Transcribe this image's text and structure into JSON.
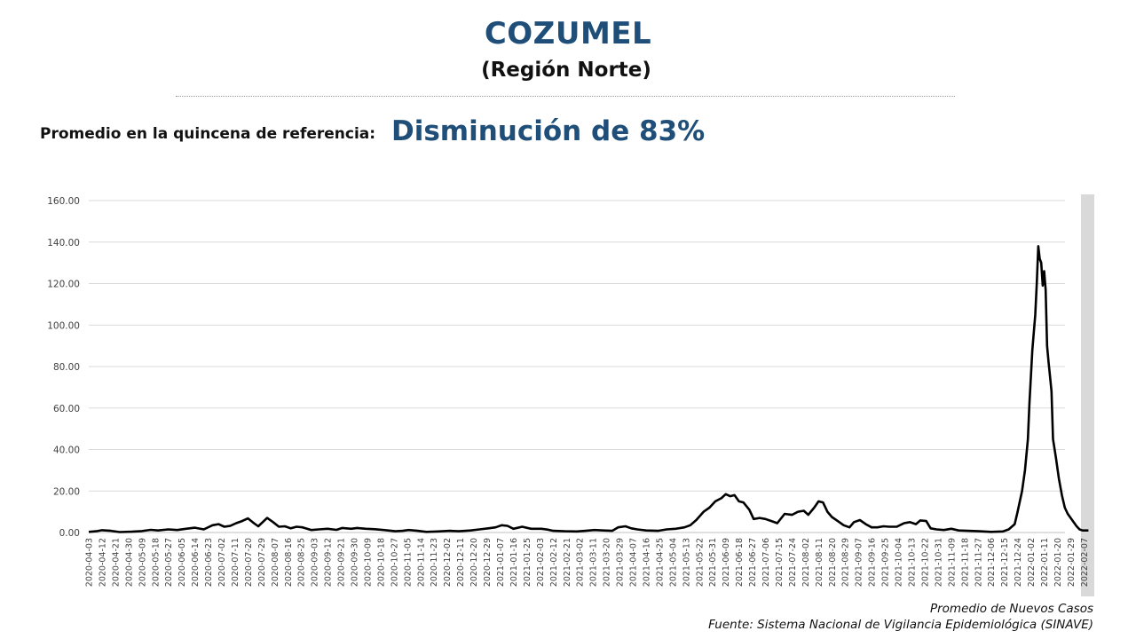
{
  "header": {
    "title": "COZUMEL",
    "subtitle": "(Región Norte)"
  },
  "reference": {
    "label": "Promedio en la quincena de referencia:",
    "value": "Disminución de 83%"
  },
  "footer": {
    "line1": "Promedio de Nuevos Casos",
    "line2": "Fuente: Sistema Nacional de Vigilancia Epidemiológica (SINAVE)"
  },
  "colors": {
    "title": "#1f4e79",
    "line": "#000000",
    "grid": "#d9d9d9",
    "shade": "#d9d9d9"
  },
  "chart_data": {
    "type": "line",
    "title": "",
    "xlabel": "",
    "ylabel": "",
    "ylim": [
      0,
      160
    ],
    "yticks": [
      "0.00",
      "20.00",
      "40.00",
      "60.00",
      "80.00",
      "100.00",
      "120.00",
      "140.00",
      "160.00"
    ],
    "grid": true,
    "shaded_region": {
      "from": "2022-02-05",
      "to": "2022-02-14"
    },
    "x_tick_labels": [
      "2020-04-03",
      "2020-04-12",
      "2020-04-21",
      "2020-04-30",
      "2020-05-09",
      "2020-05-18",
      "2020-05-27",
      "2020-06-05",
      "2020-06-14",
      "2020-06-23",
      "2020-07-02",
      "2020-07-11",
      "2020-07-20",
      "2020-07-29",
      "2020-08-07",
      "2020-08-16",
      "2020-08-25",
      "2020-09-03",
      "2020-09-12",
      "2020-09-21",
      "2020-09-30",
      "2020-10-09",
      "2020-10-18",
      "2020-10-27",
      "2020-11-05",
      "2020-11-14",
      "2020-11-23",
      "2020-12-02",
      "2020-12-11",
      "2020-12-20",
      "2020-12-29",
      "2021-01-07",
      "2021-01-16",
      "2021-01-25",
      "2021-02-03",
      "2021-02-12",
      "2021-02-21",
      "2021-03-02",
      "2021-03-11",
      "2021-03-20",
      "2021-03-29",
      "2021-04-07",
      "2021-04-16",
      "2021-04-25",
      "2021-05-04",
      "2021-05-13",
      "2021-05-22",
      "2021-05-31",
      "2021-06-09",
      "2021-06-18",
      "2021-06-27",
      "2021-07-06",
      "2021-07-15",
      "2021-07-24",
      "2021-08-02",
      "2021-08-11",
      "2021-08-20",
      "2021-08-29",
      "2021-09-07",
      "2021-09-16",
      "2021-09-25",
      "2021-10-04",
      "2021-10-13",
      "2021-10-22",
      "2021-10-31",
      "2021-11-09",
      "2021-11-18",
      "2021-11-27",
      "2021-12-06",
      "2021-12-15",
      "2021-12-24",
      "2022-01-02",
      "2022-01-11",
      "2022-01-20",
      "2022-01-29",
      "2022-02-07"
    ],
    "series": [
      {
        "name": "",
        "points": [
          [
            "2020-04-03",
            0.3
          ],
          [
            "2020-04-08",
            0.6
          ],
          [
            "2020-04-12",
            1.1
          ],
          [
            "2020-04-18",
            0.8
          ],
          [
            "2020-04-24",
            0.2
          ],
          [
            "2020-05-02",
            0.4
          ],
          [
            "2020-05-09",
            0.7
          ],
          [
            "2020-05-15",
            1.3
          ],
          [
            "2020-05-20",
            1.0
          ],
          [
            "2020-05-27",
            1.5
          ],
          [
            "2020-06-02",
            1.2
          ],
          [
            "2020-06-08",
            1.8
          ],
          [
            "2020-06-14",
            2.3
          ],
          [
            "2020-06-20",
            1.5
          ],
          [
            "2020-06-26",
            3.5
          ],
          [
            "2020-06-30",
            4.0
          ],
          [
            "2020-07-04",
            2.8
          ],
          [
            "2020-07-08",
            3.2
          ],
          [
            "2020-07-12",
            4.5
          ],
          [
            "2020-07-16",
            5.5
          ],
          [
            "2020-07-20",
            6.8
          ],
          [
            "2020-07-24",
            4.5
          ],
          [
            "2020-07-27",
            3.0
          ],
          [
            "2020-07-30",
            5.0
          ],
          [
            "2020-08-02",
            7.0
          ],
          [
            "2020-08-06",
            5.0
          ],
          [
            "2020-08-10",
            2.8
          ],
          [
            "2020-08-14",
            3.0
          ],
          [
            "2020-08-18",
            2.0
          ],
          [
            "2020-08-22",
            2.8
          ],
          [
            "2020-08-26",
            2.5
          ],
          [
            "2020-09-01",
            1.2
          ],
          [
            "2020-09-06",
            1.5
          ],
          [
            "2020-09-12",
            1.8
          ],
          [
            "2020-09-18",
            1.3
          ],
          [
            "2020-09-22",
            2.2
          ],
          [
            "2020-09-28",
            1.8
          ],
          [
            "2020-10-02",
            2.2
          ],
          [
            "2020-10-08",
            1.8
          ],
          [
            "2020-10-14",
            1.6
          ],
          [
            "2020-10-20",
            1.2
          ],
          [
            "2020-10-28",
            0.6
          ],
          [
            "2020-11-02",
            0.8
          ],
          [
            "2020-11-06",
            1.2
          ],
          [
            "2020-11-12",
            0.8
          ],
          [
            "2020-11-18",
            0.3
          ],
          [
            "2020-11-26",
            0.5
          ],
          [
            "2020-12-04",
            0.8
          ],
          [
            "2020-12-10",
            0.6
          ],
          [
            "2020-12-18",
            1.0
          ],
          [
            "2020-12-24",
            1.5
          ],
          [
            "2020-12-30",
            2.0
          ],
          [
            "2021-01-04",
            2.5
          ],
          [
            "2021-01-08",
            3.5
          ],
          [
            "2021-01-12",
            3.2
          ],
          [
            "2021-01-16",
            1.8
          ],
          [
            "2021-01-22",
            2.8
          ],
          [
            "2021-01-28",
            1.8
          ],
          [
            "2021-02-04",
            1.8
          ],
          [
            "2021-02-08",
            1.4
          ],
          [
            "2021-02-12",
            0.8
          ],
          [
            "2021-02-20",
            0.6
          ],
          [
            "2021-02-28",
            0.5
          ],
          [
            "2021-03-06",
            0.8
          ],
          [
            "2021-03-12",
            1.2
          ],
          [
            "2021-03-18",
            1.0
          ],
          [
            "2021-03-24",
            0.8
          ],
          [
            "2021-03-28",
            2.5
          ],
          [
            "2021-04-02",
            3.0
          ],
          [
            "2021-04-06",
            2.0
          ],
          [
            "2021-04-10",
            1.5
          ],
          [
            "2021-04-16",
            1.0
          ],
          [
            "2021-04-24",
            0.8
          ],
          [
            "2021-04-30",
            1.5
          ],
          [
            "2021-05-06",
            1.8
          ],
          [
            "2021-05-12",
            2.5
          ],
          [
            "2021-05-16",
            3.5
          ],
          [
            "2021-05-20",
            6.0
          ],
          [
            "2021-05-25",
            10.0
          ],
          [
            "2021-05-29",
            12.0
          ],
          [
            "2021-06-02",
            15.0
          ],
          [
            "2021-06-06",
            16.5
          ],
          [
            "2021-06-09",
            18.5
          ],
          [
            "2021-06-12",
            17.5
          ],
          [
            "2021-06-15",
            18.0
          ],
          [
            "2021-06-18",
            15.0
          ],
          [
            "2021-06-21",
            14.5
          ],
          [
            "2021-06-25",
            11.0
          ],
          [
            "2021-06-28",
            6.5
          ],
          [
            "2021-07-02",
            7.0
          ],
          [
            "2021-07-06",
            6.5
          ],
          [
            "2021-07-10",
            5.5
          ],
          [
            "2021-07-14",
            4.5
          ],
          [
            "2021-07-19",
            9.0
          ],
          [
            "2021-07-24",
            8.5
          ],
          [
            "2021-07-28",
            10.0
          ],
          [
            "2021-08-01",
            10.5
          ],
          [
            "2021-08-04",
            8.5
          ],
          [
            "2021-08-08",
            12.0
          ],
          [
            "2021-08-11",
            15.0
          ],
          [
            "2021-08-14",
            14.5
          ],
          [
            "2021-08-17",
            10.0
          ],
          [
            "2021-08-20",
            7.5
          ],
          [
            "2021-08-24",
            5.5
          ],
          [
            "2021-08-28",
            3.5
          ],
          [
            "2021-09-01",
            2.5
          ],
          [
            "2021-09-04",
            5.0
          ],
          [
            "2021-09-08",
            6.0
          ],
          [
            "2021-09-12",
            4.0
          ],
          [
            "2021-09-16",
            2.5
          ],
          [
            "2021-09-20",
            2.5
          ],
          [
            "2021-09-24",
            3.0
          ],
          [
            "2021-09-28",
            2.8
          ],
          [
            "2021-10-03",
            2.8
          ],
          [
            "2021-10-08",
            4.5
          ],
          [
            "2021-10-12",
            5.0
          ],
          [
            "2021-10-16",
            4.0
          ],
          [
            "2021-10-19",
            5.8
          ],
          [
            "2021-10-23",
            5.5
          ],
          [
            "2021-10-26",
            2.0
          ],
          [
            "2021-10-30",
            1.5
          ],
          [
            "2021-11-04",
            1.2
          ],
          [
            "2021-11-09",
            1.8
          ],
          [
            "2021-11-14",
            1.0
          ],
          [
            "2021-11-20",
            0.8
          ],
          [
            "2021-11-28",
            0.6
          ],
          [
            "2021-12-06",
            0.3
          ],
          [
            "2021-12-14",
            0.5
          ],
          [
            "2021-12-18",
            1.5
          ],
          [
            "2021-12-22",
            4.0
          ],
          [
            "2021-12-24",
            10.0
          ],
          [
            "2021-12-27",
            20.0
          ],
          [
            "2021-12-29",
            30.0
          ],
          [
            "2021-12-31",
            45.0
          ],
          [
            "2022-01-01",
            62.0
          ],
          [
            "2022-01-03",
            88.0
          ],
          [
            "2022-01-05",
            105.0
          ],
          [
            "2022-01-06",
            120.0
          ],
          [
            "2022-01-07",
            138.0
          ],
          [
            "2022-01-08",
            132.0
          ],
          [
            "2022-01-09",
            130.0
          ],
          [
            "2022-01-10",
            119.0
          ],
          [
            "2022-01-11",
            126.0
          ],
          [
            "2022-01-12",
            117.0
          ],
          [
            "2022-01-13",
            90.0
          ],
          [
            "2022-01-14",
            82.0
          ],
          [
            "2022-01-15",
            75.0
          ],
          [
            "2022-01-16",
            68.0
          ],
          [
            "2022-01-17",
            45.0
          ],
          [
            "2022-01-19",
            36.0
          ],
          [
            "2022-01-21",
            26.0
          ],
          [
            "2022-01-23",
            18.0
          ],
          [
            "2022-01-25",
            12.0
          ],
          [
            "2022-01-27",
            9.0
          ],
          [
            "2022-01-29",
            7.0
          ],
          [
            "2022-01-31",
            5.0
          ],
          [
            "2022-02-02",
            3.0
          ],
          [
            "2022-02-04",
            1.5
          ],
          [
            "2022-02-06",
            1.0
          ],
          [
            "2022-02-10",
            1.0
          ]
        ]
      }
    ]
  }
}
